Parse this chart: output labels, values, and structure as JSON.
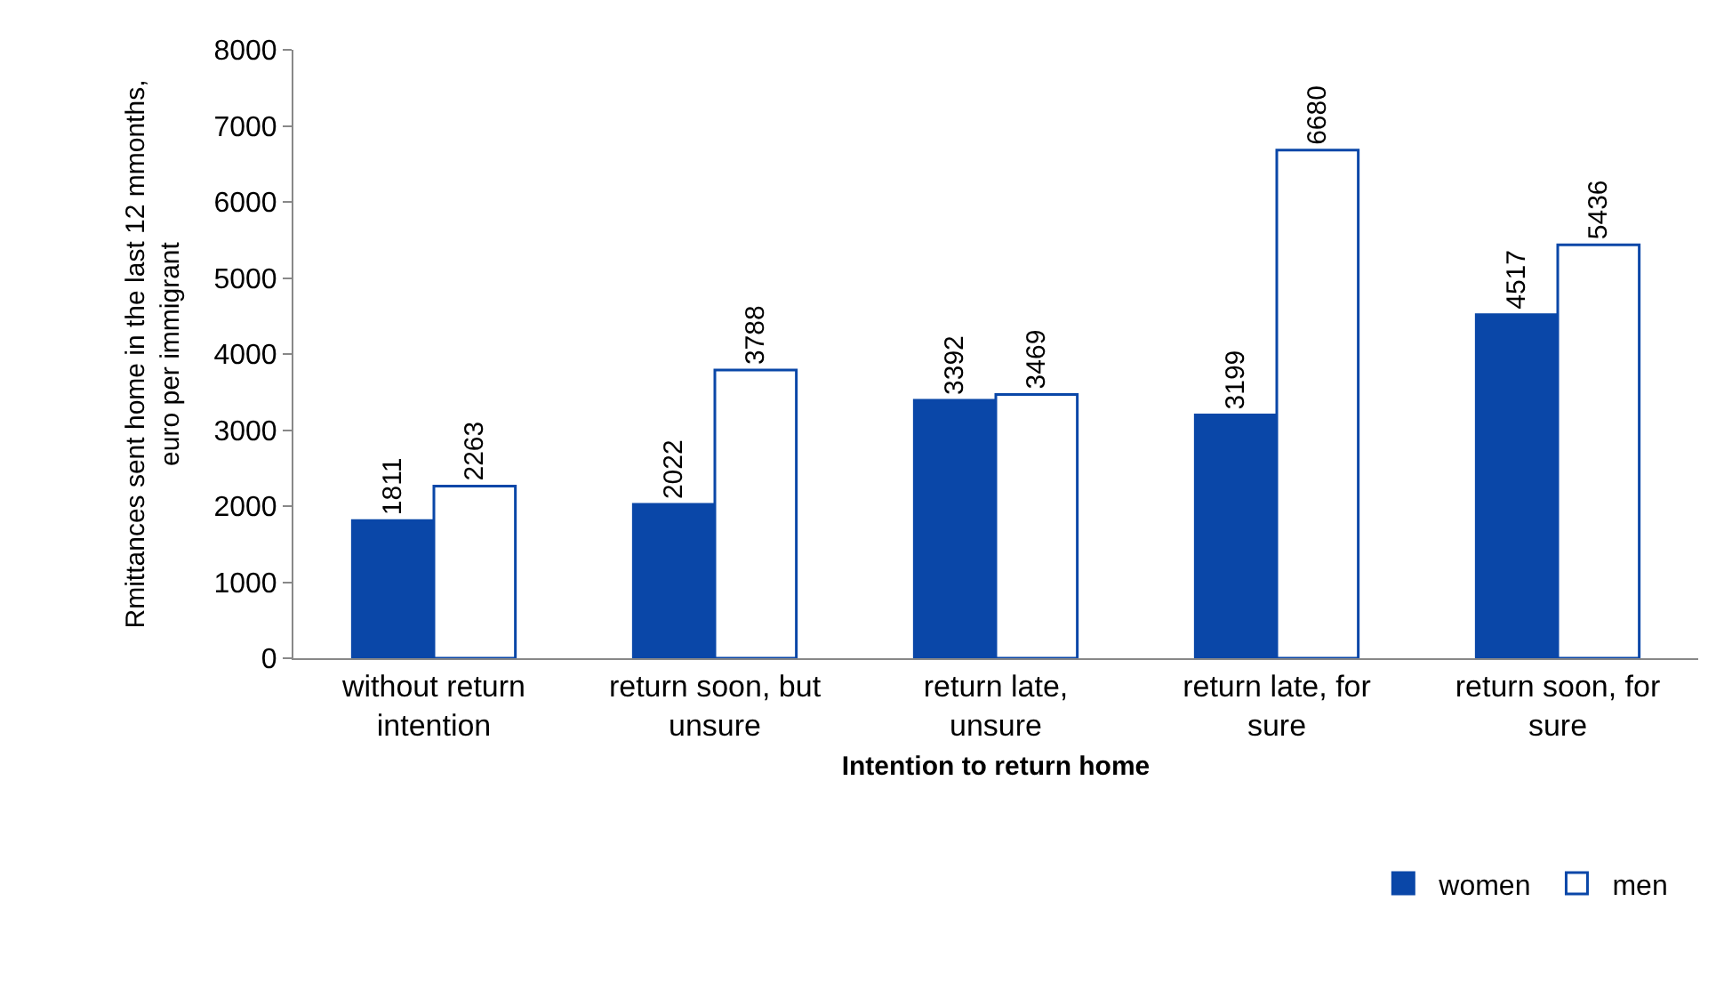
{
  "chart_data": {
    "type": "bar",
    "xlabel": "Intention to return home",
    "ylabel": "Rmittances sent home in the last 12 mmonths, euro per immigrant",
    "categories": [
      "without return intention",
      "return soon, but unsure",
      "return late, unsure",
      "return late, for sure",
      "return soon, for sure"
    ],
    "series": [
      {
        "name": "women",
        "color": "#0a47a8",
        "values": [
          1811,
          2022,
          3392,
          3199,
          4517
        ]
      },
      {
        "name": "men",
        "color": "#0a47a8",
        "values": [
          2263,
          3788,
          3469,
          6680,
          5436
        ]
      }
    ],
    "ylim": [
      0,
      8000
    ],
    "yticks": [
      0,
      1000,
      2000,
      3000,
      4000,
      5000,
      6000,
      7000,
      8000
    ],
    "data_labels": true,
    "legend": "bottom right"
  }
}
